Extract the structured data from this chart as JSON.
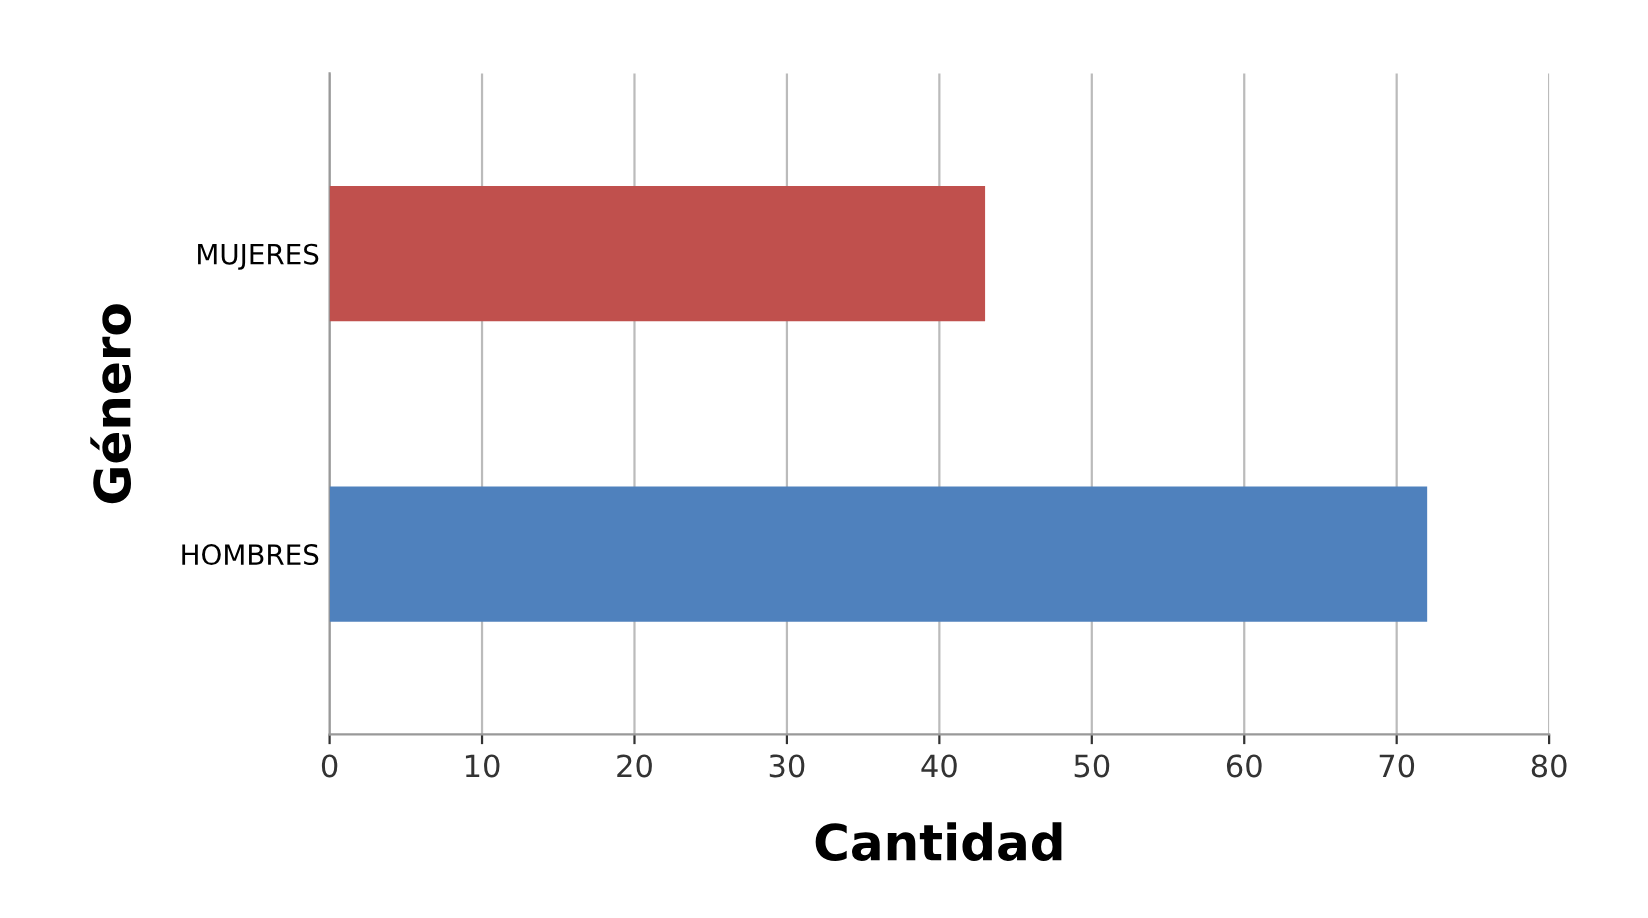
{
  "chart_data": {
    "type": "bar",
    "orientation": "horizontal",
    "xlabel": "Cantidad",
    "ylabel": "Género",
    "categories": [
      "MUJERES",
      "HOMBRES"
    ],
    "values": [
      43,
      72
    ],
    "colors": [
      "#c0504d",
      "#4f81bd"
    ],
    "xlim": [
      0,
      80
    ],
    "xticks": [
      0,
      10,
      20,
      30,
      40,
      50,
      60,
      70,
      80
    ],
    "grid": "x"
  }
}
